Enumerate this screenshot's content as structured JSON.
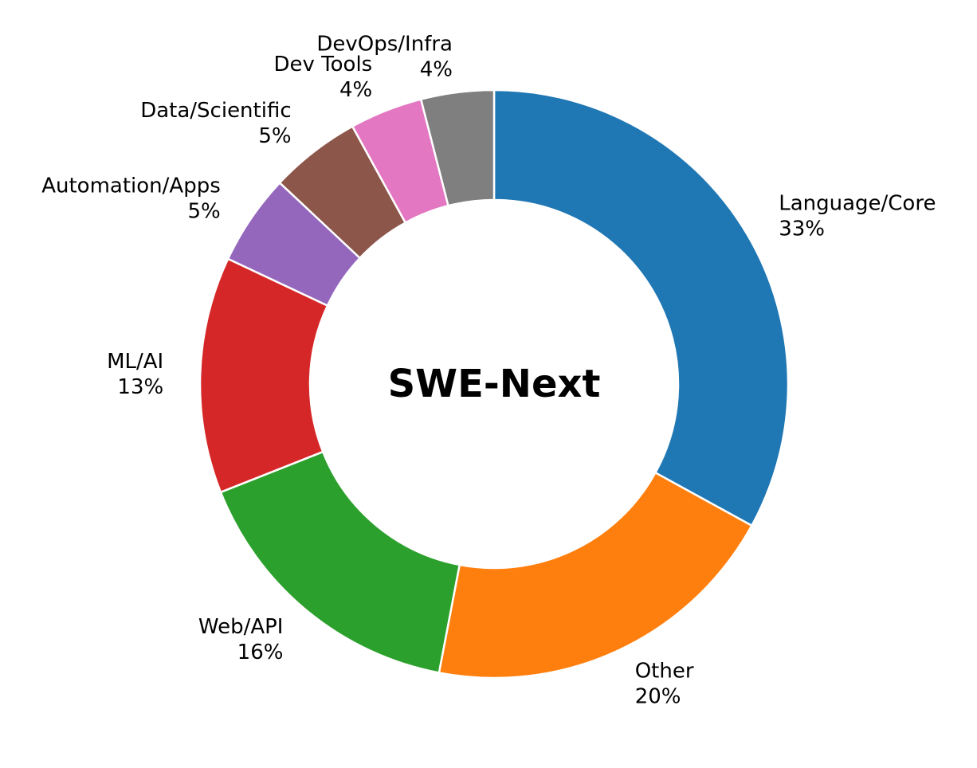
{
  "chart_data": {
    "type": "pie",
    "variant": "donut",
    "title": "",
    "center_label": "SWE-Next",
    "start": "top",
    "direction": "clockwise",
    "legend": "none",
    "slices": [
      {
        "label": "Language/Core",
        "value": 33,
        "value_label": "33%",
        "color": "#1f77b4"
      },
      {
        "label": "Other",
        "value": 20,
        "value_label": "20%",
        "color": "#ff7f0e"
      },
      {
        "label": "Web/API",
        "value": 16,
        "value_label": "16%",
        "color": "#2ca02c"
      },
      {
        "label": "ML/AI",
        "value": 13,
        "value_label": "13%",
        "color": "#d62728"
      },
      {
        "label": "Automation/Apps",
        "value": 5,
        "value_label": "5%",
        "color": "#9467bd"
      },
      {
        "label": "Data/Scientific",
        "value": 5,
        "value_label": "5%",
        "color": "#8c564b"
      },
      {
        "label": "Dev Tools",
        "value": 4,
        "value_label": "4%",
        "color": "#e377c2"
      },
      {
        "label": "DevOps/Infra",
        "value": 4,
        "value_label": "4%",
        "color": "#7f7f7f"
      }
    ]
  }
}
